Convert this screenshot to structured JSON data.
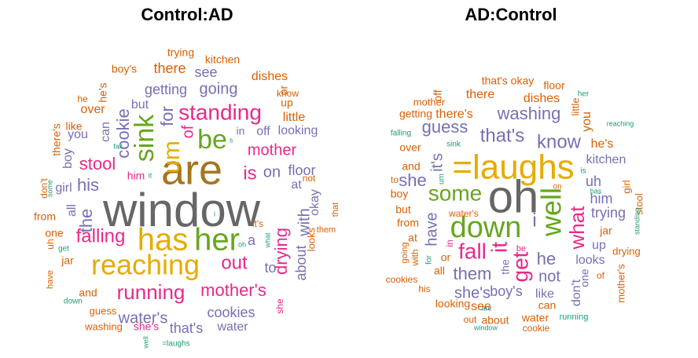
{
  "palette": {
    "green": "#1b9e77",
    "orange": "#d95f02",
    "purple": "#7570b3",
    "pink": "#e7298a",
    "lime": "#66a61e",
    "gold": "#e6ab02",
    "brown": "#a6761d",
    "gray": "#666666"
  },
  "chart_data": [
    {
      "type": "wordcloud",
      "title": "Control:AD",
      "words": [
        {
          "text": "window",
          "weight": 100,
          "color": "gray"
        },
        {
          "text": "are",
          "weight": 95,
          "color": "brown"
        },
        {
          "text": "has",
          "weight": 70,
          "color": "gold"
        },
        {
          "text": "her",
          "weight": 70,
          "color": "lime"
        },
        {
          "text": "reaching",
          "weight": 60,
          "color": "gold"
        },
        {
          "text": "sink",
          "weight": 52,
          "color": "lime"
        },
        {
          "text": "be",
          "weight": 52,
          "color": "lime"
        },
        {
          "text": "um",
          "weight": 48,
          "color": "gold"
        },
        {
          "text": "standing",
          "weight": 46,
          "color": "pink"
        },
        {
          "text": "running",
          "weight": 40,
          "color": "pink"
        },
        {
          "text": "falling",
          "weight": 38,
          "color": "pink"
        },
        {
          "text": "for",
          "weight": 36,
          "color": "purple"
        },
        {
          "text": "stool",
          "weight": 36,
          "color": "pink"
        },
        {
          "text": "mother's",
          "weight": 35,
          "color": "pink"
        },
        {
          "text": "out",
          "weight": 34,
          "color": "pink"
        },
        {
          "text": "cookie",
          "weight": 32,
          "color": "purple"
        },
        {
          "text": "is",
          "weight": 32,
          "color": "pink"
        },
        {
          "text": "his",
          "weight": 30,
          "color": "purple"
        },
        {
          "text": "going",
          "weight": 30,
          "color": "purple"
        },
        {
          "text": "drying",
          "weight": 30,
          "color": "pink"
        },
        {
          "text": "mother",
          "weight": 28,
          "color": "pink"
        },
        {
          "text": "the",
          "weight": 28,
          "color": "purple"
        },
        {
          "text": "water's",
          "weight": 28,
          "color": "purple"
        },
        {
          "text": "with",
          "weight": 26,
          "color": "purple"
        },
        {
          "text": "about",
          "weight": 26,
          "color": "purple"
        },
        {
          "text": "on",
          "weight": 26,
          "color": "purple"
        },
        {
          "text": "of",
          "weight": 26,
          "color": "pink"
        },
        {
          "text": "cookies",
          "weight": 24,
          "color": "purple"
        },
        {
          "text": "getting",
          "weight": 24,
          "color": "purple"
        },
        {
          "text": "floor",
          "weight": 24,
          "color": "purple"
        },
        {
          "text": "that's",
          "weight": 24,
          "color": "purple"
        },
        {
          "text": "looking",
          "weight": 24,
          "color": "purple"
        },
        {
          "text": "all",
          "weight": 22,
          "color": "purple"
        },
        {
          "text": "there",
          "weight": 22,
          "color": "orange"
        },
        {
          "text": "can",
          "weight": 22,
          "color": "purple"
        },
        {
          "text": "see",
          "weight": 22,
          "color": "purple"
        },
        {
          "text": "a",
          "weight": 22,
          "color": "purple"
        },
        {
          "text": "to",
          "weight": 22,
          "color": "purple"
        },
        {
          "text": "off",
          "weight": 22,
          "color": "purple"
        },
        {
          "text": "girl",
          "weight": 20,
          "color": "purple"
        },
        {
          "text": "boy",
          "weight": 20,
          "color": "purple"
        },
        {
          "text": "you",
          "weight": 20,
          "color": "purple"
        },
        {
          "text": "but",
          "weight": 20,
          "color": "purple"
        },
        {
          "text": "at",
          "weight": 20,
          "color": "purple"
        },
        {
          "text": "okay",
          "weight": 20,
          "color": "purple"
        },
        {
          "text": "water",
          "weight": 20,
          "color": "purple"
        },
        {
          "text": "little",
          "weight": 20,
          "color": "orange"
        },
        {
          "text": "dishes",
          "weight": 20,
          "color": "orange"
        },
        {
          "text": "over",
          "weight": 20,
          "color": "orange"
        },
        {
          "text": "from",
          "weight": 18,
          "color": "orange"
        },
        {
          "text": "one",
          "weight": 18,
          "color": "orange"
        },
        {
          "text": "and",
          "weight": 18,
          "color": "orange"
        },
        {
          "text": "jar",
          "weight": 18,
          "color": "orange"
        },
        {
          "text": "kitchen",
          "weight": 18,
          "color": "orange"
        },
        {
          "text": "there's",
          "weight": 18,
          "color": "orange"
        },
        {
          "text": "like",
          "weight": 16,
          "color": "orange"
        },
        {
          "text": "or",
          "weight": 18,
          "color": "orange"
        },
        {
          "text": "up",
          "weight": 18,
          "color": "orange"
        },
        {
          "text": "in",
          "weight": 18,
          "color": "purple"
        },
        {
          "text": "he's",
          "weight": 16,
          "color": "orange"
        },
        {
          "text": "boy's",
          "weight": 16,
          "color": "orange"
        },
        {
          "text": "trying",
          "weight": 16,
          "color": "orange"
        },
        {
          "text": "he",
          "weight": 14,
          "color": "orange"
        },
        {
          "text": "him",
          "weight": 16,
          "color": "pink"
        },
        {
          "text": "it's",
          "weight": 14,
          "color": "orange"
        },
        {
          "text": "she's",
          "weight": 16,
          "color": "pink"
        },
        {
          "text": "guess",
          "weight": 14,
          "color": "orange"
        },
        {
          "text": "washing",
          "weight": 14,
          "color": "orange"
        },
        {
          "text": "know",
          "weight": 14,
          "color": "orange"
        },
        {
          "text": "not",
          "weight": 14,
          "color": "orange"
        },
        {
          "text": "don't",
          "weight": 14,
          "color": "orange"
        },
        {
          "text": "uh",
          "weight": 14,
          "color": "orange"
        },
        {
          "text": "have",
          "weight": 12,
          "color": "orange"
        },
        {
          "text": "looks",
          "weight": 14,
          "color": "orange"
        },
        {
          "text": "them",
          "weight": 12,
          "color": "orange"
        },
        {
          "text": "that",
          "weight": 12,
          "color": "orange"
        },
        {
          "text": "she",
          "weight": 12,
          "color": "pink"
        },
        {
          "text": "some",
          "weight": 10,
          "color": "green"
        },
        {
          "text": "get",
          "weight": 10,
          "color": "green"
        },
        {
          "text": "down",
          "weight": 10,
          "color": "green"
        },
        {
          "text": "fall",
          "weight": 9,
          "color": "green"
        },
        {
          "text": "it",
          "weight": 10,
          "color": "green"
        },
        {
          "text": "s",
          "weight": 9,
          "color": "green"
        },
        {
          "text": "i",
          "weight": 9,
          "color": "green"
        },
        {
          "text": "oh",
          "weight": 9,
          "color": "green"
        },
        {
          "text": "what",
          "weight": 9,
          "color": "green"
        },
        {
          "text": "well",
          "weight": 9,
          "color": "green"
        },
        {
          "text": "=laughs",
          "weight": 9,
          "color": "green"
        }
      ]
    },
    {
      "type": "wordcloud",
      "title": "AD:Control",
      "words": [
        {
          "text": "oh",
          "weight": 100,
          "color": "gray"
        },
        {
          "text": "=laughs",
          "weight": 80,
          "color": "gold"
        },
        {
          "text": "down",
          "weight": 62,
          "color": "lime"
        },
        {
          "text": "well",
          "weight": 55,
          "color": "lime"
        },
        {
          "text": "some",
          "weight": 45,
          "color": "lime"
        },
        {
          "text": "fall",
          "weight": 45,
          "color": "pink"
        },
        {
          "text": "get",
          "weight": 42,
          "color": "pink"
        },
        {
          "text": "it",
          "weight": 40,
          "color": "pink"
        },
        {
          "text": "what",
          "weight": 40,
          "color": "pink"
        },
        {
          "text": "i",
          "weight": 36,
          "color": "purple"
        },
        {
          "text": "know",
          "weight": 34,
          "color": "purple"
        },
        {
          "text": "that's",
          "weight": 34,
          "color": "purple"
        },
        {
          "text": "washing",
          "weight": 32,
          "color": "purple"
        },
        {
          "text": "guess",
          "weight": 32,
          "color": "purple"
        },
        {
          "text": "them",
          "weight": 30,
          "color": "purple"
        },
        {
          "text": "he",
          "weight": 30,
          "color": "purple"
        },
        {
          "text": "she's",
          "weight": 28,
          "color": "purple"
        },
        {
          "text": "have",
          "weight": 28,
          "color": "purple"
        },
        {
          "text": "it's",
          "weight": 26,
          "color": "purple"
        },
        {
          "text": "not",
          "weight": 26,
          "color": "purple"
        },
        {
          "text": "boy's",
          "weight": 26,
          "color": "purple"
        },
        {
          "text": "uh",
          "weight": 24,
          "color": "purple"
        },
        {
          "text": "trying",
          "weight": 24,
          "color": "purple"
        },
        {
          "text": "don't",
          "weight": 24,
          "color": "purple"
        },
        {
          "text": "she",
          "weight": 24,
          "color": "purple"
        },
        {
          "text": "you",
          "weight": 20,
          "color": "orange"
        },
        {
          "text": "the",
          "weight": 22,
          "color": "purple"
        },
        {
          "text": "him",
          "weight": 22,
          "color": "purple"
        },
        {
          "text": "kitchen",
          "weight": 22,
          "color": "purple"
        },
        {
          "text": "looks",
          "weight": 22,
          "color": "purple"
        },
        {
          "text": "like",
          "weight": 22,
          "color": "purple"
        },
        {
          "text": "one",
          "weight": 20,
          "color": "purple"
        },
        {
          "text": "up",
          "weight": 20,
          "color": "purple"
        },
        {
          "text": "there",
          "weight": 20,
          "color": "orange"
        },
        {
          "text": "dishes",
          "weight": 20,
          "color": "orange"
        },
        {
          "text": "there's",
          "weight": 20,
          "color": "orange"
        },
        {
          "text": "he's",
          "weight": 20,
          "color": "orange"
        },
        {
          "text": "see",
          "weight": 20,
          "color": "orange"
        },
        {
          "text": "about",
          "weight": 18,
          "color": "orange"
        },
        {
          "text": "water",
          "weight": 18,
          "color": "orange"
        },
        {
          "text": "looking",
          "weight": 18,
          "color": "orange"
        },
        {
          "text": "and",
          "weight": 18,
          "color": "orange"
        },
        {
          "text": "at",
          "weight": 18,
          "color": "orange"
        },
        {
          "text": "jar",
          "weight": 18,
          "color": "orange"
        },
        {
          "text": "all",
          "weight": 18,
          "color": "orange"
        },
        {
          "text": "or",
          "weight": 18,
          "color": "orange"
        },
        {
          "text": "from",
          "weight": 16,
          "color": "orange"
        },
        {
          "text": "over",
          "weight": 16,
          "color": "orange"
        },
        {
          "text": "boy",
          "weight": 16,
          "color": "orange"
        },
        {
          "text": "but",
          "weight": 16,
          "color": "orange"
        },
        {
          "text": "can",
          "weight": 16,
          "color": "orange"
        },
        {
          "text": "floor",
          "weight": 16,
          "color": "orange"
        },
        {
          "text": "that's okay",
          "weight": 16,
          "color": "orange"
        },
        {
          "text": "getting",
          "weight": 16,
          "color": "orange"
        },
        {
          "text": "off",
          "weight": 16,
          "color": "orange"
        },
        {
          "text": "mother",
          "weight": 14,
          "color": "orange"
        },
        {
          "text": "little",
          "weight": 14,
          "color": "orange"
        },
        {
          "text": "to",
          "weight": 14,
          "color": "orange"
        },
        {
          "text": "with",
          "weight": 14,
          "color": "orange"
        },
        {
          "text": "cookies",
          "weight": 14,
          "color": "orange"
        },
        {
          "text": "his",
          "weight": 14,
          "color": "orange"
        },
        {
          "text": "water's",
          "weight": 14,
          "color": "orange"
        },
        {
          "text": "going",
          "weight": 13,
          "color": "orange"
        },
        {
          "text": "drying",
          "weight": 14,
          "color": "orange"
        },
        {
          "text": "mother's",
          "weight": 14,
          "color": "orange"
        },
        {
          "text": "stool",
          "weight": 14,
          "color": "orange"
        },
        {
          "text": "girl",
          "weight": 14,
          "color": "orange"
        },
        {
          "text": "of",
          "weight": 14,
          "color": "orange"
        },
        {
          "text": "cookie",
          "weight": 14,
          "color": "orange"
        },
        {
          "text": "in",
          "weight": 12,
          "color": "pink"
        },
        {
          "text": "be",
          "weight": 12,
          "color": "pink"
        },
        {
          "text": "out",
          "weight": 12,
          "color": "orange"
        },
        {
          "text": "falling",
          "weight": 10,
          "color": "green"
        },
        {
          "text": "sink",
          "weight": 10,
          "color": "green"
        },
        {
          "text": "um",
          "weight": 10,
          "color": "green"
        },
        {
          "text": "for",
          "weight": 10,
          "color": "green"
        },
        {
          "text": "on",
          "weight": 10,
          "color": "orange"
        },
        {
          "text": "is",
          "weight": 10,
          "color": "green"
        },
        {
          "text": "has",
          "weight": 9,
          "color": "green"
        },
        {
          "text": "her",
          "weight": 10,
          "color": "green"
        },
        {
          "text": "reaching",
          "weight": 10,
          "color": "green"
        },
        {
          "text": "standing",
          "weight": 10,
          "color": "green"
        },
        {
          "text": "running",
          "weight": 11,
          "color": "green"
        },
        {
          "text": "are",
          "weight": 9,
          "color": "green"
        },
        {
          "text": "window",
          "weight": 9,
          "color": "green"
        }
      ]
    }
  ]
}
